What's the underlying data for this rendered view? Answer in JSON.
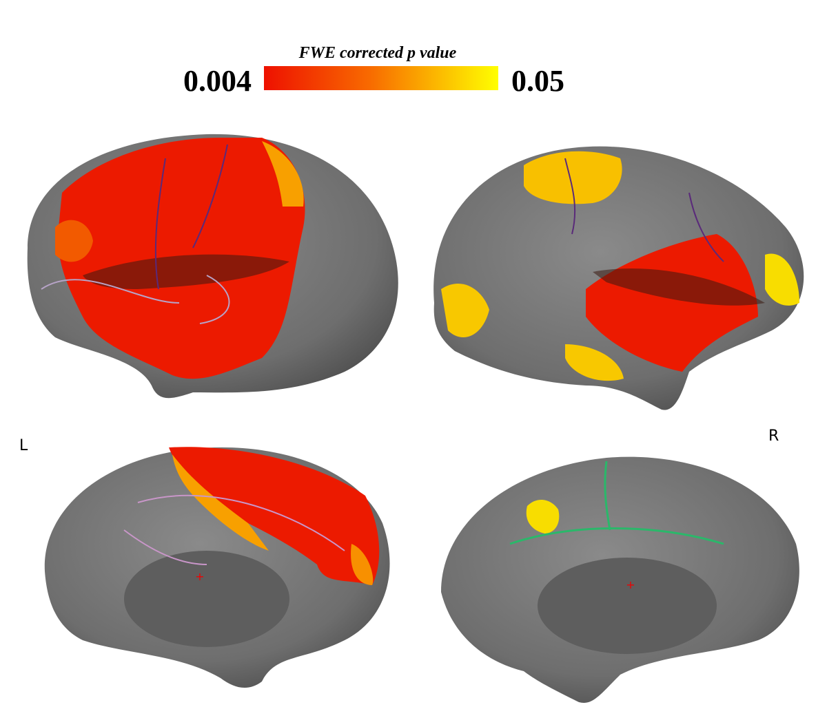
{
  "colorbar": {
    "title": "FWE corrected p value",
    "min_label": "0.004",
    "max_label": "0.05"
  },
  "hemisphere_labels": {
    "left": "L",
    "right": "R"
  }
}
